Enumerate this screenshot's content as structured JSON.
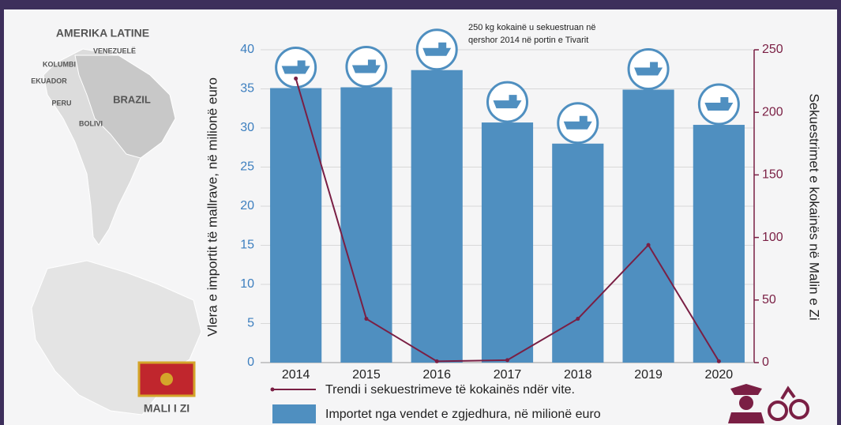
{
  "chart_data": {
    "type": "bar-line",
    "annotation": [
      "250 kg kokainë u sekuestruan në",
      "qershor 2014 në portin e Tivarit"
    ],
    "y_label": "Vlera e importit të mallrave, në milionë euro",
    "y2_label": "Sekuestrimet e kokainës në Malin e Zi",
    "categories": [
      "2014",
      "2015",
      "2016",
      "2017",
      "2018",
      "2019",
      "2020"
    ],
    "series": [
      {
        "name": "Importet nga vendet e zgjedhura, në milionë euro",
        "type": "bar",
        "color": "#4f8fc0",
        "axis": "y",
        "values": [
          35.1,
          35.2,
          37.4,
          30.7,
          28.0,
          34.9,
          30.4
        ]
      },
      {
        "name": "Trendi i sekuestrimeve të kokainës ndër vite.",
        "type": "line",
        "color": "#7a1f44",
        "axis": "y2",
        "values": [
          227,
          35,
          1,
          2,
          35,
          94,
          1
        ]
      }
    ],
    "ylim": [
      0,
      40
    ],
    "yticks": [
      0,
      5,
      10,
      15,
      20,
      25,
      30,
      35,
      40
    ],
    "y2lim": [
      0,
      250
    ],
    "y2ticks": [
      0,
      50,
      100,
      150,
      200,
      250
    ],
    "grid": true,
    "map_labels": {
      "region": "AMERIKA LATINE",
      "countries": [
        "VENEZUELË",
        "KOLUMBI",
        "EKUADOR",
        "PERU",
        "BRAZIL",
        "BOLIVI"
      ],
      "country": "MALI I ZI"
    }
  }
}
